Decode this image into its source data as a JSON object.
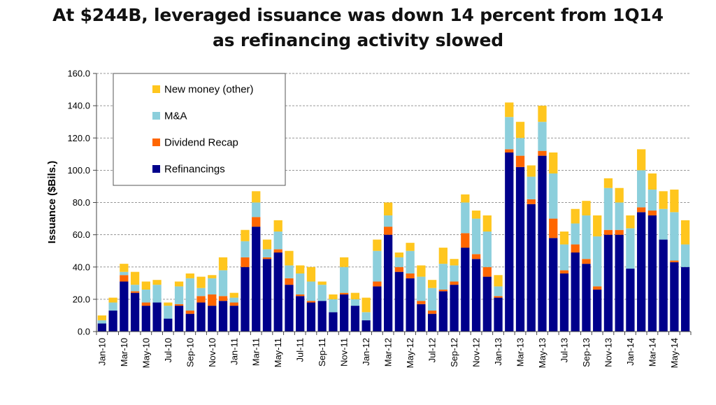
{
  "chart_data": {
    "type": "bar",
    "stacked": true,
    "title": "At $244B, leveraged issuance was down 14 percent from 1Q14",
    "subtitle": "as refinancing activity slowed",
    "xlabel": "",
    "ylabel": "Issuance ($Bils.)",
    "ylim": [
      0,
      160
    ],
    "yticks": [
      "0.0",
      "20.0",
      "40.0",
      "60.0",
      "80.0",
      "100.0",
      "120.0",
      "140.0",
      "160.0"
    ],
    "grid": "horizontal dashed",
    "legend_position": "top-left",
    "categories": [
      "Jan-10",
      "Feb-10",
      "Mar-10",
      "Apr-10",
      "May-10",
      "Jun-10",
      "Jul-10",
      "Aug-10",
      "Sep-10",
      "Oct-10",
      "Nov-10",
      "Dec-10",
      "Jan-11",
      "Feb-11",
      "Mar-11",
      "Apr-11",
      "May-11",
      "Jun-11",
      "Jul-11",
      "Aug-11",
      "Sep-11",
      "Oct-11",
      "Nov-11",
      "Dec-11",
      "Jan-12",
      "Feb-12",
      "Mar-12",
      "Apr-12",
      "May-12",
      "Jun-12",
      "Jul-12",
      "Aug-12",
      "Sep-12",
      "Oct-12",
      "Nov-12",
      "Dec-12",
      "Jan-13",
      "Feb-13",
      "Mar-13",
      "Apr-13",
      "May-13",
      "Jun-13",
      "Jul-13",
      "Aug-13",
      "Sep-13",
      "Oct-13",
      "Nov-13",
      "Dec-13",
      "Jan-14",
      "Feb-14",
      "Mar-14",
      "Apr-14",
      "May-14",
      "Jun-14"
    ],
    "tick_labels": [
      "Jan-10",
      "Mar-10",
      "May-10",
      "Jul-10",
      "Sep-10",
      "Nov-10",
      "Jan-11",
      "Mar-11",
      "May-11",
      "Jul-11",
      "Sep-11",
      "Nov-11",
      "Jan-12",
      "Mar-12",
      "May-12",
      "Jul-12",
      "Sep-12",
      "Nov-12",
      "Jan-13",
      "Mar-13",
      "May-13",
      "Jul-13",
      "Sep-13",
      "Nov-13",
      "Jan-14",
      "Mar-14",
      "May-14"
    ],
    "series": [
      {
        "name": "Refinancings",
        "color": "#00008B",
        "values": [
          5,
          13,
          31,
          24,
          16,
          18,
          8,
          16,
          11,
          18,
          16,
          19,
          16,
          40,
          65,
          45,
          49,
          29,
          22,
          18,
          19,
          12,
          23,
          16,
          7,
          28,
          60,
          37,
          33,
          17,
          11,
          25,
          29,
          52,
          45,
          34,
          21,
          111,
          102,
          79,
          109,
          58,
          36,
          49,
          42,
          26,
          60,
          60,
          39,
          74,
          72,
          57,
          43,
          40
        ]
      },
      {
        "name": "Dividend Recap",
        "color": "#FF6600",
        "values": [
          0,
          0,
          4,
          1,
          2,
          0,
          0,
          1,
          2,
          4,
          7,
          3,
          2,
          6,
          6,
          1,
          2,
          4,
          1,
          1,
          0,
          0,
          1,
          0,
          0,
          3,
          5,
          3,
          3,
          2,
          2,
          1,
          2,
          9,
          3,
          6,
          1,
          2,
          7,
          3,
          3,
          12,
          2,
          5,
          3,
          2,
          3,
          3,
          0,
          3,
          3,
          0,
          1,
          0
        ]
      },
      {
        "name": "M&A",
        "color": "#8CCFDC",
        "values": [
          2,
          5,
          2,
          4,
          8,
          11,
          8,
          11,
          20,
          5,
          10,
          16,
          3,
          10,
          9,
          5,
          11,
          8,
          13,
          12,
          10,
          8,
          16,
          4,
          5,
          19,
          7,
          6,
          14,
          15,
          14,
          16,
          10,
          19,
          22,
          22,
          6,
          20,
          11,
          14,
          18,
          28,
          16,
          13,
          27,
          31,
          26,
          17,
          25,
          23,
          13,
          19,
          30,
          14
        ]
      },
      {
        "name": "New money (other)",
        "color": "#FFC61E",
        "values": [
          3,
          3,
          5,
          8,
          5,
          3,
          2,
          3,
          3,
          7,
          2,
          8,
          3,
          7,
          7,
          6,
          7,
          9,
          5,
          9,
          2,
          3,
          6,
          4,
          9,
          7,
          8,
          3,
          5,
          7,
          5,
          10,
          4,
          5,
          5,
          10,
          7,
          9,
          10,
          7,
          10,
          13,
          8,
          9,
          9,
          13,
          6,
          9,
          8,
          13,
          10,
          11,
          14,
          15
        ]
      }
    ],
    "legend_order": [
      "New money (other)",
      "M&A",
      "Dividend Recap",
      "Refinancings"
    ]
  }
}
